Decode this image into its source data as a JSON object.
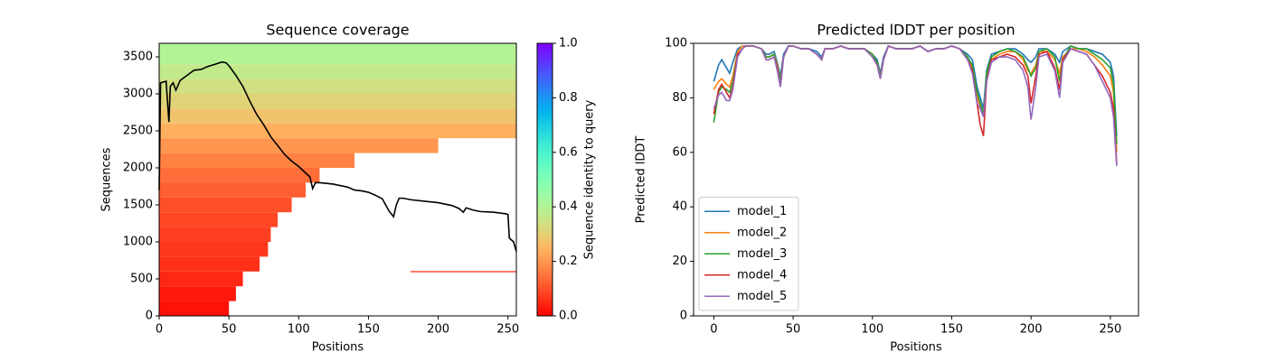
{
  "chart_data": [
    {
      "type": "heatmap",
      "title": "Sequence coverage",
      "xlabel": "Positions",
      "ylabel": "Sequences",
      "xlim": [
        0,
        256
      ],
      "ylim": [
        0,
        3683
      ],
      "xticks": [
        0,
        50,
        100,
        150,
        200,
        250
      ],
      "yticks": [
        0,
        500,
        1000,
        1500,
        2000,
        2500,
        3000,
        3500
      ],
      "bands": [
        {
          "x": [
            0,
            50
          ],
          "y": [
            0,
            200
          ],
          "identity": 0.02
        },
        {
          "x": [
            0,
            55
          ],
          "y": [
            200,
            400
          ],
          "identity": 0.03
        },
        {
          "x": [
            0,
            60
          ],
          "y": [
            400,
            600
          ],
          "identity": 0.05
        },
        {
          "x": [
            180,
            256
          ],
          "y": [
            590,
            605
          ],
          "identity": 0.05
        },
        {
          "x": [
            0,
            72
          ],
          "y": [
            600,
            800
          ],
          "identity": 0.06
        },
        {
          "x": [
            0,
            78
          ],
          "y": [
            800,
            1000
          ],
          "identity": 0.07
        },
        {
          "x": [
            0,
            80
          ],
          "y": [
            1000,
            1200
          ],
          "identity": 0.08
        },
        {
          "x": [
            0,
            85
          ],
          "y": [
            1200,
            1400
          ],
          "identity": 0.09
        },
        {
          "x": [
            0,
            95
          ],
          "y": [
            1400,
            1600
          ],
          "identity": 0.1
        },
        {
          "x": [
            0,
            105
          ],
          "y": [
            1600,
            1800
          ],
          "identity": 0.12
        },
        {
          "x": [
            0,
            115
          ],
          "y": [
            1800,
            2000
          ],
          "identity": 0.14
        },
        {
          "x": [
            0,
            140
          ],
          "y": [
            2000,
            2200
          ],
          "identity": 0.17
        },
        {
          "x": [
            0,
            200
          ],
          "y": [
            2200,
            2400
          ],
          "identity": 0.2
        },
        {
          "x": [
            0,
            256
          ],
          "y": [
            2400,
            2600
          ],
          "identity": 0.24
        },
        {
          "x": [
            0,
            256
          ],
          "y": [
            2600,
            2800
          ],
          "identity": 0.28
        },
        {
          "x": [
            0,
            256
          ],
          "y": [
            2800,
            3000
          ],
          "identity": 0.31
        },
        {
          "x": [
            0,
            256
          ],
          "y": [
            3000,
            3200
          ],
          "identity": 0.34
        },
        {
          "x": [
            0,
            256
          ],
          "y": [
            3200,
            3400
          ],
          "identity": 0.37
        },
        {
          "x": [
            0,
            256
          ],
          "y": [
            3400,
            3683
          ],
          "identity": 0.4
        }
      ],
      "coverage": {
        "color": "#000000",
        "x": [
          0,
          1,
          5,
          7,
          8,
          10,
          12,
          15,
          20,
          25,
          30,
          35,
          40,
          45,
          48,
          50,
          55,
          60,
          65,
          70,
          75,
          80,
          85,
          90,
          95,
          100,
          105,
          108,
          110,
          112,
          115,
          120,
          125,
          130,
          135,
          140,
          145,
          150,
          155,
          160,
          165,
          168,
          170,
          172,
          175,
          180,
          190,
          200,
          210,
          215,
          218,
          220,
          225,
          230,
          240,
          248,
          250,
          251,
          254,
          256
        ],
        "values": [
          1700,
          3150,
          3170,
          2620,
          3100,
          3150,
          3050,
          3180,
          3250,
          3320,
          3330,
          3370,
          3400,
          3430,
          3420,
          3380,
          3250,
          3100,
          2900,
          2720,
          2580,
          2420,
          2300,
          2180,
          2090,
          2020,
          1930,
          1880,
          1720,
          1800,
          1800,
          1790,
          1780,
          1760,
          1740,
          1700,
          1690,
          1670,
          1630,
          1580,
          1410,
          1340,
          1500,
          1590,
          1590,
          1570,
          1550,
          1530,
          1490,
          1450,
          1400,
          1460,
          1430,
          1410,
          1400,
          1380,
          1370,
          1050,
          1000,
          870
        ]
      },
      "colorbar": {
        "label": "Sequence identity to query",
        "colormap": "rainbow_r",
        "lim": [
          0,
          1
        ],
        "ticks": [
          {
            "value": 0,
            "label": "0.0"
          },
          {
            "value": 0.2,
            "label": "0.2"
          },
          {
            "value": 0.4,
            "label": "0.4"
          },
          {
            "value": 0.6,
            "label": "0.6"
          },
          {
            "value": 0.8,
            "label": "0.8"
          },
          {
            "value": 1,
            "label": "1.0"
          }
        ]
      }
    },
    {
      "type": "line",
      "title": "Predicted lDDT per position",
      "xlabel": "Positions",
      "ylabel": "Predicted lDDT",
      "xlim": [
        -12.75,
        267.75
      ],
      "ylim": [
        0,
        100
      ],
      "xticks": [
        0,
        50,
        100,
        150,
        200,
        250
      ],
      "yticks": [
        0,
        20,
        40,
        60,
        80,
        100
      ],
      "legend": "lower left",
      "x": [
        0,
        3,
        5,
        8,
        10,
        12,
        15,
        18,
        20,
        25,
        30,
        33,
        35,
        38,
        40,
        42,
        44,
        47,
        50,
        55,
        60,
        65,
        68,
        70,
        75,
        80,
        85,
        90,
        95,
        100,
        103,
        105,
        107,
        110,
        115,
        120,
        125,
        130,
        135,
        140,
        145,
        150,
        155,
        160,
        163,
        166,
        168,
        170,
        172,
        175,
        180,
        185,
        190,
        195,
        198,
        200,
        203,
        205,
        210,
        215,
        218,
        220,
        225,
        230,
        235,
        240,
        245,
        250,
        252,
        254
      ],
      "series": [
        {
          "name": "model_1",
          "color": "#1f77b4",
          "values": [
            86,
            92,
            94,
            91,
            89,
            93,
            98,
            99,
            99,
            99,
            98,
            96,
            96,
            97,
            93,
            88,
            96,
            99,
            99,
            98,
            98,
            97,
            95,
            98,
            98,
            99,
            98,
            98,
            98,
            96,
            94,
            89,
            95,
            99,
            98,
            98,
            98,
            99,
            97,
            98,
            98,
            99,
            98,
            96,
            94,
            84,
            80,
            76,
            90,
            96,
            97,
            98,
            98,
            96,
            94,
            93,
            95,
            98,
            98,
            96,
            93,
            97,
            99,
            98,
            98,
            97,
            96,
            93,
            88,
            66
          ]
        },
        {
          "name": "model_2",
          "color": "#ff7f0e",
          "values": [
            83,
            86,
            87,
            85,
            84,
            88,
            97,
            99,
            99,
            99,
            98,
            95,
            95,
            96,
            92,
            86,
            95,
            99,
            99,
            98,
            98,
            96,
            94,
            98,
            98,
            99,
            98,
            98,
            98,
            96,
            93,
            88,
            94,
            99,
            98,
            98,
            98,
            99,
            97,
            98,
            98,
            99,
            98,
            95,
            91,
            80,
            77,
            74,
            88,
            94,
            96,
            97,
            97,
            94,
            90,
            89,
            92,
            97,
            97,
            94,
            89,
            95,
            98,
            98,
            97,
            95,
            92,
            88,
            82,
            60
          ]
        },
        {
          "name": "model_3",
          "color": "#2ca02c",
          "values": [
            71,
            82,
            84,
            83,
            82,
            86,
            96,
            98,
            99,
            99,
            98,
            95,
            95,
            96,
            91,
            86,
            95,
            99,
            99,
            98,
            98,
            96,
            94,
            98,
            98,
            99,
            98,
            98,
            98,
            96,
            93,
            88,
            94,
            99,
            98,
            98,
            98,
            99,
            97,
            98,
            98,
            99,
            98,
            95,
            92,
            82,
            78,
            74,
            89,
            95,
            97,
            98,
            97,
            95,
            91,
            88,
            91,
            97,
            98,
            95,
            86,
            94,
            99,
            98,
            98,
            96,
            94,
            91,
            85,
            63
          ]
        },
        {
          "name": "model_4",
          "color": "#d62728",
          "values": [
            74,
            83,
            85,
            82,
            80,
            84,
            96,
            98,
            99,
            99,
            98,
            94,
            94,
            95,
            91,
            84,
            95,
            99,
            99,
            98,
            98,
            96,
            94,
            98,
            98,
            99,
            98,
            98,
            98,
            95,
            92,
            87,
            94,
            99,
            98,
            98,
            98,
            99,
            97,
            98,
            98,
            99,
            98,
            94,
            90,
            78,
            70,
            66,
            86,
            94,
            95,
            96,
            95,
            92,
            88,
            78,
            88,
            96,
            97,
            91,
            83,
            94,
            98,
            97,
            96,
            92,
            88,
            82,
            76,
            56
          ]
        },
        {
          "name": "model_5",
          "color": "#9467bd",
          "values": [
            76,
            81,
            82,
            79,
            79,
            83,
            95,
            98,
            99,
            99,
            98,
            94,
            94,
            95,
            90,
            84,
            95,
            99,
            99,
            98,
            98,
            96,
            94,
            98,
            98,
            99,
            98,
            98,
            98,
            95,
            92,
            87,
            94,
            99,
            98,
            98,
            98,
            99,
            97,
            98,
            98,
            99,
            98,
            94,
            89,
            78,
            76,
            73,
            86,
            93,
            95,
            95,
            94,
            90,
            84,
            72,
            84,
            95,
            96,
            90,
            80,
            93,
            98,
            97,
            96,
            92,
            86,
            80,
            73,
            55
          ]
        }
      ]
    }
  ]
}
